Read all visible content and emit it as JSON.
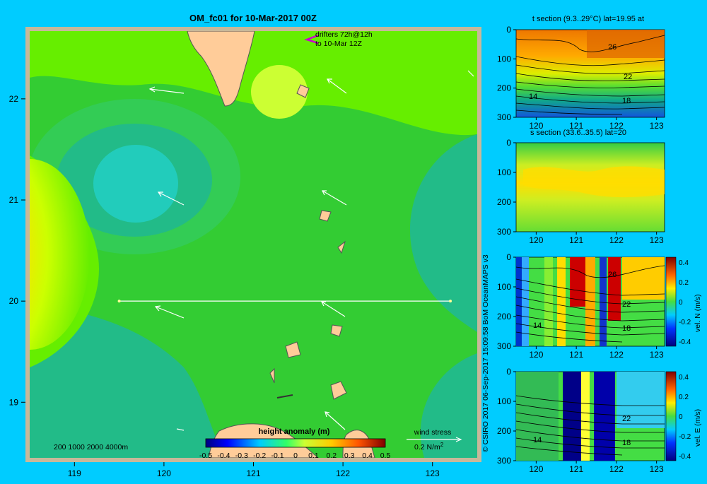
{
  "title": "OM_fc01 for 10-Mar-2017 00Z",
  "colors": {
    "background": "#00ccff",
    "land": "#ffcc99",
    "frame": "#c8b89a",
    "drifter": "#cc00cc"
  },
  "map": {
    "x_ticks": [
      "119",
      "120",
      "121",
      "122",
      "123"
    ],
    "y_ticks": [
      "22",
      "21",
      "20",
      "19"
    ],
    "drifter_label_1": "drifters 72h@12h",
    "drifter_label_2": "to 10-Mar 12Z",
    "depth_legend": "200  1000  2000  4000m",
    "colorbar_title": "height anomaly (m)",
    "colorbar_ticks": [
      "-0.5",
      "-0.4",
      "-0.3",
      "-0.2",
      "-0.1",
      "0",
      "0.1",
      "0.2",
      "0.3",
      "0.4",
      "0.5"
    ],
    "wind_label": "wind stress",
    "wind_scale": "0.2 N/m",
    "wind_scale_sup": "2",
    "section_line": {
      "lat": 20,
      "lon_start": 119.5,
      "lon_end": 123.2
    }
  },
  "credit": "© CSIRO 2017   06-Sep-2017 15:09:58 BoM OceanMAPS v3",
  "panels": {
    "t_title": "t section (9.3..29°C) lat=19.95 at",
    "s_title": "s section (33.6..35.5) lat=20",
    "depth_ticks": [
      "0",
      "100",
      "200",
      "300"
    ],
    "lon_ticks": [
      "120",
      "121",
      "122",
      "123"
    ],
    "t_contours": [
      "26",
      "22",
      "18",
      "14"
    ],
    "n_ylabel": "vel. N (m/s)",
    "e_ylabel": "vel. E (m/s)",
    "vel_ticks": [
      "0.4",
      "0.2",
      "0",
      "-0.2",
      "-0.4"
    ],
    "n_contours": [
      "26",
      "22",
      "18",
      "14"
    ],
    "e_contours": [
      "22",
      "18",
      "14"
    ]
  }
}
